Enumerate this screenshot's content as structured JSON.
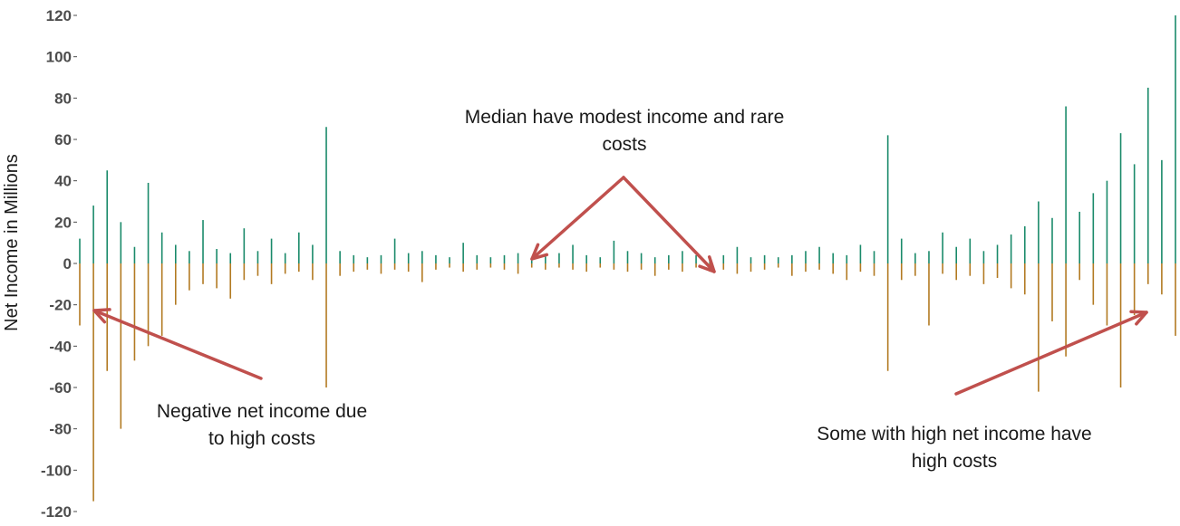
{
  "chart_data": {
    "type": "bar",
    "ylabel": "Net Income in Millions",
    "xlabel": "",
    "title": "",
    "ylim": [
      -120,
      120
    ],
    "yticks": [
      120,
      100,
      80,
      60,
      40,
      20,
      0,
      -20,
      -40,
      -60,
      -80,
      -100,
      -120
    ],
    "grid": false,
    "colors": {
      "income": "#1a8a6a",
      "costs": "#b27a22",
      "arrow": "#c0504d"
    },
    "series": [
      {
        "name": "",
        "values": [
          12,
          28,
          45,
          20,
          8,
          39,
          15,
          9,
          6,
          21,
          7,
          5,
          17,
          6,
          12,
          5,
          15,
          9,
          66,
          6,
          4,
          3,
          4,
          12,
          5,
          6,
          4,
          3,
          10,
          4,
          3,
          4,
          5,
          3,
          4,
          5,
          9,
          4,
          3,
          11,
          6,
          5,
          3,
          4,
          6,
          4,
          3,
          4,
          8,
          3,
          4,
          3,
          4,
          6,
          8,
          5,
          4,
          9,
          6,
          62,
          12,
          5,
          6,
          15,
          8,
          12,
          6,
          9,
          14,
          18,
          30,
          22,
          76,
          25,
          34,
          40,
          63,
          48,
          85,
          50,
          120
        ]
      },
      {
        "name": "",
        "values": [
          -30,
          -115,
          -52,
          -80,
          -47,
          -40,
          -35,
          -20,
          -13,
          -10,
          -12,
          -17,
          -8,
          -6,
          -10,
          -5,
          -4,
          -8,
          -60,
          -6,
          -4,
          -3,
          -5,
          -3,
          -4,
          -9,
          -3,
          -2,
          -4,
          -3,
          -2,
          -3,
          -5,
          -2,
          -3,
          -2,
          -3,
          -4,
          -2,
          -3,
          -4,
          -3,
          -6,
          -3,
          -4,
          -2,
          -4,
          -3,
          -5,
          -4,
          -3,
          -2,
          -6,
          -4,
          -3,
          -5,
          -8,
          -4,
          -6,
          -52,
          -8,
          -6,
          -30,
          -5,
          -8,
          -6,
          -10,
          -7,
          -12,
          -15,
          -62,
          -28,
          -45,
          -8,
          -20,
          -30,
          -60,
          -25,
          -10,
          -15,
          -35
        ]
      }
    ],
    "annotations": [
      {
        "text": "Median have modest income and rare costs",
        "lines": [
          "Median have modest income and rare",
          "costs"
        ]
      },
      {
        "text": "Negative net income due to high costs",
        "lines": [
          "Negative net income due",
          "to high costs"
        ]
      },
      {
        "text": "Some with high net income have high costs",
        "lines": [
          "Some with high net income have",
          "high costs"
        ]
      }
    ]
  }
}
